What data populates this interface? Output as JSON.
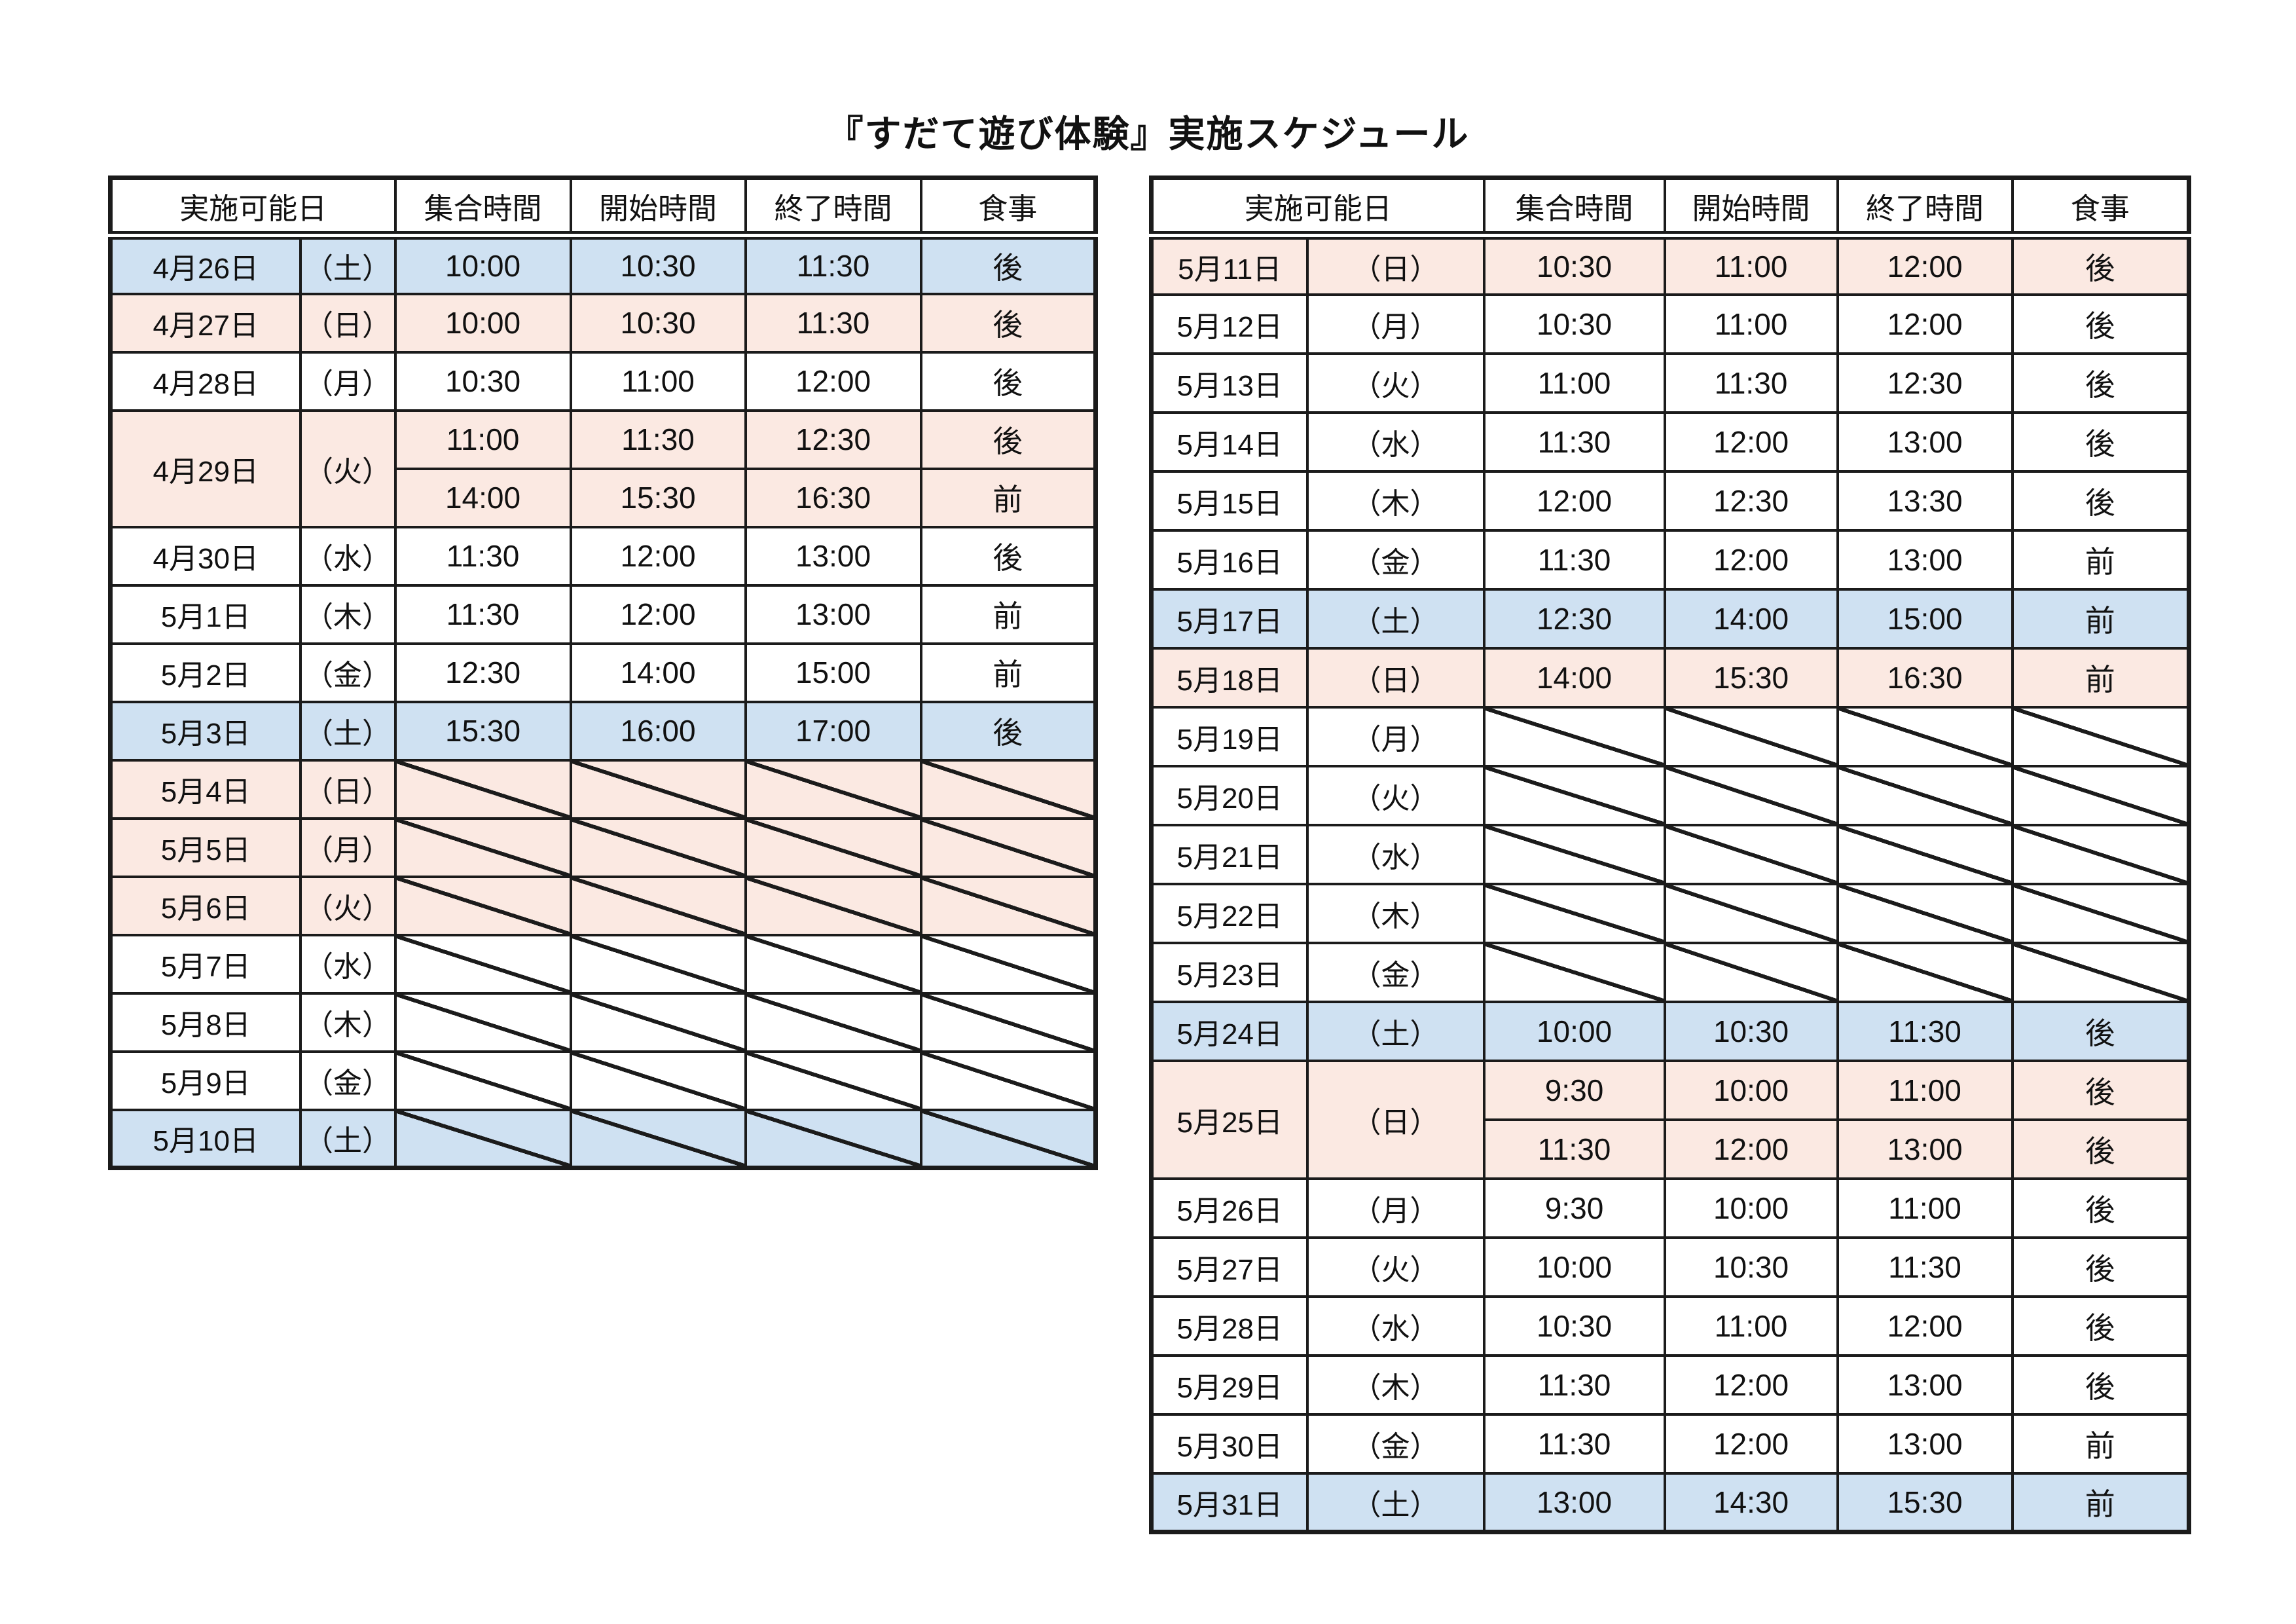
{
  "title": "『すだて遊び体験』実施スケジュール",
  "columns": {
    "date": "実施可能日",
    "meet": "集合時間",
    "start": "開始時間",
    "end": "終了時間",
    "meal": "食事"
  },
  "colors": {
    "saturday_blue": "#cfe1f2",
    "sunday_pink": "#fbe9e2",
    "weekday_white": "#ffffff",
    "line": "#1b1b1b"
  },
  "legend": {
    "meal_after": "後",
    "meal_before": "前"
  },
  "tables": [
    {
      "name": "april-late-schedule",
      "rows": [
        {
          "date": "4月26日",
          "day": "（土）",
          "color": "blue",
          "slots": [
            {
              "meet": "10:00",
              "start": "10:30",
              "end": "11:30",
              "meal": "後"
            }
          ]
        },
        {
          "date": "4月27日",
          "day": "（日）",
          "color": "pink",
          "slots": [
            {
              "meet": "10:00",
              "start": "10:30",
              "end": "11:30",
              "meal": "後"
            }
          ]
        },
        {
          "date": "4月28日",
          "day": "（月）",
          "color": "white",
          "slots": [
            {
              "meet": "10:30",
              "start": "11:00",
              "end": "12:00",
              "meal": "後"
            }
          ]
        },
        {
          "date": "4月29日",
          "day": "（火）",
          "color": "pink",
          "slots": [
            {
              "meet": "11:00",
              "start": "11:30",
              "end": "12:30",
              "meal": "後"
            },
            {
              "meet": "14:00",
              "start": "15:30",
              "end": "16:30",
              "meal": "前"
            }
          ]
        },
        {
          "date": "4月30日",
          "day": "（水）",
          "color": "white",
          "slots": [
            {
              "meet": "11:30",
              "start": "12:00",
              "end": "13:00",
              "meal": "後"
            }
          ]
        },
        {
          "date": "5月1日",
          "day": "（木）",
          "color": "white",
          "slots": [
            {
              "meet": "11:30",
              "start": "12:00",
              "end": "13:00",
              "meal": "前"
            }
          ]
        },
        {
          "date": "5月2日",
          "day": "（金）",
          "color": "white",
          "slots": [
            {
              "meet": "12:30",
              "start": "14:00",
              "end": "15:00",
              "meal": "前"
            }
          ]
        },
        {
          "date": "5月3日",
          "day": "（土）",
          "color": "blue",
          "slots": [
            {
              "meet": "15:30",
              "start": "16:00",
              "end": "17:00",
              "meal": "後"
            }
          ]
        },
        {
          "date": "5月4日",
          "day": "（日）",
          "color": "pink",
          "crossed": true
        },
        {
          "date": "5月5日",
          "day": "（月）",
          "color": "pink",
          "crossed": true
        },
        {
          "date": "5月6日",
          "day": "（火）",
          "color": "pink",
          "crossed": true
        },
        {
          "date": "5月7日",
          "day": "（水）",
          "color": "white",
          "crossed": true
        },
        {
          "date": "5月8日",
          "day": "（木）",
          "color": "white",
          "crossed": true
        },
        {
          "date": "5月9日",
          "day": "（金）",
          "color": "white",
          "crossed": true
        },
        {
          "date": "5月10日",
          "day": "（土）",
          "color": "blue",
          "crossed": true
        }
      ]
    },
    {
      "name": "may-schedule",
      "rows": [
        {
          "date": "5月11日",
          "day": "（日）",
          "color": "pink",
          "slots": [
            {
              "meet": "10:30",
              "start": "11:00",
              "end": "12:00",
              "meal": "後"
            }
          ]
        },
        {
          "date": "5月12日",
          "day": "（月）",
          "color": "white",
          "slots": [
            {
              "meet": "10:30",
              "start": "11:00",
              "end": "12:00",
              "meal": "後"
            }
          ]
        },
        {
          "date": "5月13日",
          "day": "（火）",
          "color": "white",
          "slots": [
            {
              "meet": "11:00",
              "start": "11:30",
              "end": "12:30",
              "meal": "後"
            }
          ]
        },
        {
          "date": "5月14日",
          "day": "（水）",
          "color": "white",
          "slots": [
            {
              "meet": "11:30",
              "start": "12:00",
              "end": "13:00",
              "meal": "後"
            }
          ]
        },
        {
          "date": "5月15日",
          "day": "（木）",
          "color": "white",
          "slots": [
            {
              "meet": "12:00",
              "start": "12:30",
              "end": "13:30",
              "meal": "後"
            }
          ]
        },
        {
          "date": "5月16日",
          "day": "（金）",
          "color": "white",
          "slots": [
            {
              "meet": "11:30",
              "start": "12:00",
              "end": "13:00",
              "meal": "前"
            }
          ]
        },
        {
          "date": "5月17日",
          "day": "（土）",
          "color": "blue",
          "slots": [
            {
              "meet": "12:30",
              "start": "14:00",
              "end": "15:00",
              "meal": "前"
            }
          ]
        },
        {
          "date": "5月18日",
          "day": "（日）",
          "color": "pink",
          "slots": [
            {
              "meet": "14:00",
              "start": "15:30",
              "end": "16:30",
              "meal": "前"
            }
          ]
        },
        {
          "date": "5月19日",
          "day": "（月）",
          "color": "white",
          "crossed": true
        },
        {
          "date": "5月20日",
          "day": "（火）",
          "color": "white",
          "crossed": true
        },
        {
          "date": "5月21日",
          "day": "（水）",
          "color": "white",
          "crossed": true
        },
        {
          "date": "5月22日",
          "day": "（木）",
          "color": "white",
          "crossed": true
        },
        {
          "date": "5月23日",
          "day": "（金）",
          "color": "white",
          "crossed": true
        },
        {
          "date": "5月24日",
          "day": "（土）",
          "color": "blue",
          "slots": [
            {
              "meet": "10:00",
              "start": "10:30",
              "end": "11:30",
              "meal": "後"
            }
          ]
        },
        {
          "date": "5月25日",
          "day": "（日）",
          "color": "pink",
          "slots": [
            {
              "meet": "9:30",
              "start": "10:00",
              "end": "11:00",
              "meal": "後"
            },
            {
              "meet": "11:30",
              "start": "12:00",
              "end": "13:00",
              "meal": "後"
            }
          ]
        },
        {
          "date": "5月26日",
          "day": "（月）",
          "color": "white",
          "slots": [
            {
              "meet": "9:30",
              "start": "10:00",
              "end": "11:00",
              "meal": "後"
            }
          ]
        },
        {
          "date": "5月27日",
          "day": "（火）",
          "color": "white",
          "slots": [
            {
              "meet": "10:00",
              "start": "10:30",
              "end": "11:30",
              "meal": "後"
            }
          ]
        },
        {
          "date": "5月28日",
          "day": "（水）",
          "color": "white",
          "slots": [
            {
              "meet": "10:30",
              "start": "11:00",
              "end": "12:00",
              "meal": "後"
            }
          ]
        },
        {
          "date": "5月29日",
          "day": "（木）",
          "color": "white",
          "slots": [
            {
              "meet": "11:30",
              "start": "12:00",
              "end": "13:00",
              "meal": "後"
            }
          ]
        },
        {
          "date": "5月30日",
          "day": "（金）",
          "color": "white",
          "slots": [
            {
              "meet": "11:30",
              "start": "12:00",
              "end": "13:00",
              "meal": "前"
            }
          ]
        },
        {
          "date": "5月31日",
          "day": "（土）",
          "color": "blue",
          "slots": [
            {
              "meet": "13:00",
              "start": "14:30",
              "end": "15:30",
              "meal": "前"
            }
          ]
        }
      ]
    }
  ]
}
